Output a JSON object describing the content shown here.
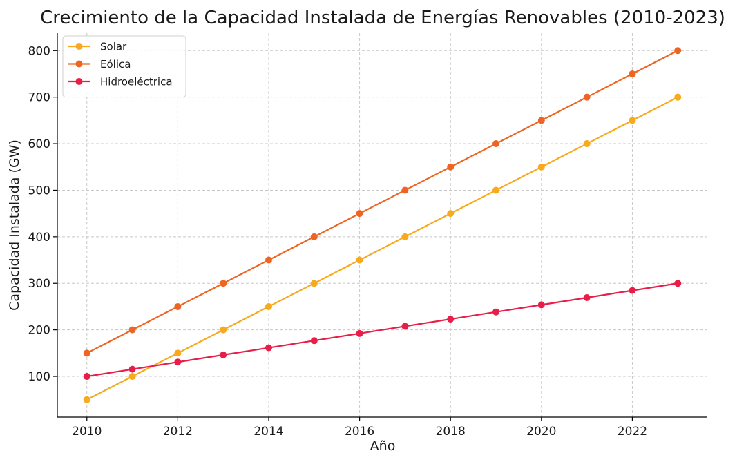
{
  "chart_data": {
    "type": "line",
    "title": "Crecimiento de la Capacidad Instalada de Energías Renovables (2010-2023)",
    "xlabel": "Año",
    "ylabel": "Capacidad Instalada (GW)",
    "x": [
      2010,
      2011,
      2012,
      2013,
      2014,
      2015,
      2016,
      2017,
      2018,
      2019,
      2020,
      2021,
      2022,
      2023
    ],
    "xticks": [
      2010,
      2012,
      2014,
      2016,
      2018,
      2020,
      2022
    ],
    "yticks": [
      100,
      200,
      300,
      400,
      500,
      600,
      700,
      800
    ],
    "xlim": [
      2009.35,
      2023.65
    ],
    "ylim": [
      12.5,
      837.5
    ],
    "grid": true,
    "legend_position": "top-left",
    "series": [
      {
        "name": "Solar",
        "color": "#f8a91c",
        "values": [
          50,
          100,
          150,
          200,
          250,
          300,
          350,
          400,
          450,
          500,
          550,
          600,
          650,
          700
        ]
      },
      {
        "name": "Eólica",
        "color": "#ee6422",
        "values": [
          150,
          200,
          250,
          300,
          350,
          400,
          450,
          500,
          550,
          600,
          650,
          700,
          750,
          800
        ]
      },
      {
        "name": "Hidroeléctrica",
        "color": "#e81e49",
        "values": [
          100,
          115.4,
          130.8,
          146.2,
          161.5,
          176.9,
          192.3,
          207.7,
          223.1,
          238.5,
          253.8,
          269.2,
          284.6,
          300
        ]
      }
    ]
  }
}
